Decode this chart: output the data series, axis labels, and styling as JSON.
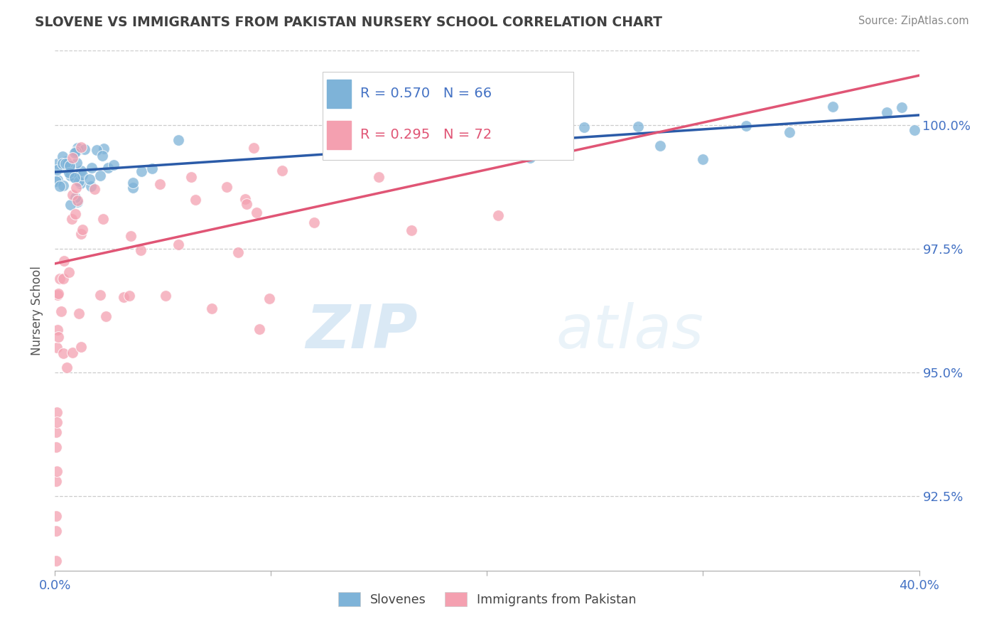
{
  "title": "SLOVENE VS IMMIGRANTS FROM PAKISTAN NURSERY SCHOOL CORRELATION CHART",
  "source": "Source: ZipAtlas.com",
  "ylabel": "Nursery School",
  "x_min": 0.0,
  "x_max": 40.0,
  "y_min": 91.0,
  "y_max": 101.5,
  "y_ticks": [
    92.5,
    95.0,
    97.5,
    100.0
  ],
  "y_tick_labels": [
    "92.5%",
    "95.0%",
    "97.5%",
    "100.0%"
  ],
  "x_tick_positions": [
    0.0,
    10.0,
    20.0,
    30.0,
    40.0
  ],
  "x_tick_labels": [
    "0.0%",
    "",
    "",
    "",
    "40.0%"
  ],
  "blue_R": 0.57,
  "blue_N": 66,
  "pink_R": 0.295,
  "pink_N": 72,
  "blue_color": "#7EB3D8",
  "pink_color": "#F4A0B0",
  "blue_line_color": "#2B5BA8",
  "pink_line_color": "#E05575",
  "legend_label_blue": "Slovenes",
  "legend_label_pink": "Immigrants from Pakistan",
  "watermark_zip": "ZIP",
  "watermark_atlas": "atlas",
  "background_color": "#ffffff",
  "axis_label_color": "#4472C4",
  "title_color": "#404040",
  "blue_trend_x0": 0,
  "blue_trend_x1": 40,
  "blue_trend_y0": 99.05,
  "blue_trend_y1": 100.2,
  "pink_trend_x0": 0,
  "pink_trend_x1": 40,
  "pink_trend_y0": 97.2,
  "pink_trend_y1": 101.0
}
